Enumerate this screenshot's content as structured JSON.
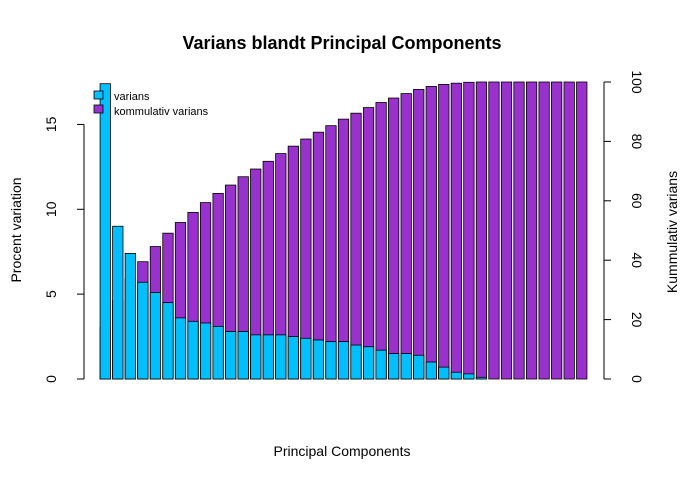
{
  "chart_data": {
    "type": "bar",
    "title": "Varians blandt Principal Components",
    "xlabel": "Principal Components",
    "ylabel_left": "Procent variation",
    "ylabel_right": "Kummulativ varians",
    "ylim_left": [
      0,
      17.5
    ],
    "ylim_right": [
      0,
      100
    ],
    "yticks_left": [
      "0",
      "5",
      "10",
      "15"
    ],
    "yticks_right": [
      "0",
      "20",
      "40",
      "60",
      "80",
      "100"
    ],
    "legend_position": "top-left",
    "colors": {
      "varians": "#00BFFF",
      "kummulativ": "#9932CC",
      "border": "#000000"
    },
    "series": [
      {
        "name": "varians",
        "values": [
          17.4,
          9.0,
          7.4,
          5.7,
          5.1,
          4.5,
          3.6,
          3.4,
          3.3,
          3.1,
          2.8,
          2.8,
          2.6,
          2.6,
          2.6,
          2.5,
          2.4,
          2.3,
          2.2,
          2.2,
          2.0,
          1.9,
          1.7,
          1.5,
          1.5,
          1.4,
          1.0,
          0.7,
          0.4,
          0.3,
          0.1,
          0,
          0,
          0,
          0,
          0,
          0,
          0,
          0
        ]
      },
      {
        "name": "kommulativ varians",
        "values": [
          17.4,
          26.4,
          33.8,
          39.5,
          44.6,
          49.1,
          52.7,
          56.1,
          59.4,
          62.5,
          65.3,
          68.1,
          70.7,
          73.3,
          75.9,
          78.4,
          80.8,
          83.1,
          85.3,
          87.5,
          89.5,
          91.4,
          93.1,
          94.6,
          96.1,
          97.5,
          98.5,
          99.2,
          99.6,
          99.9,
          100,
          100,
          100,
          100,
          100,
          100,
          100,
          100,
          100
        ]
      }
    ]
  }
}
